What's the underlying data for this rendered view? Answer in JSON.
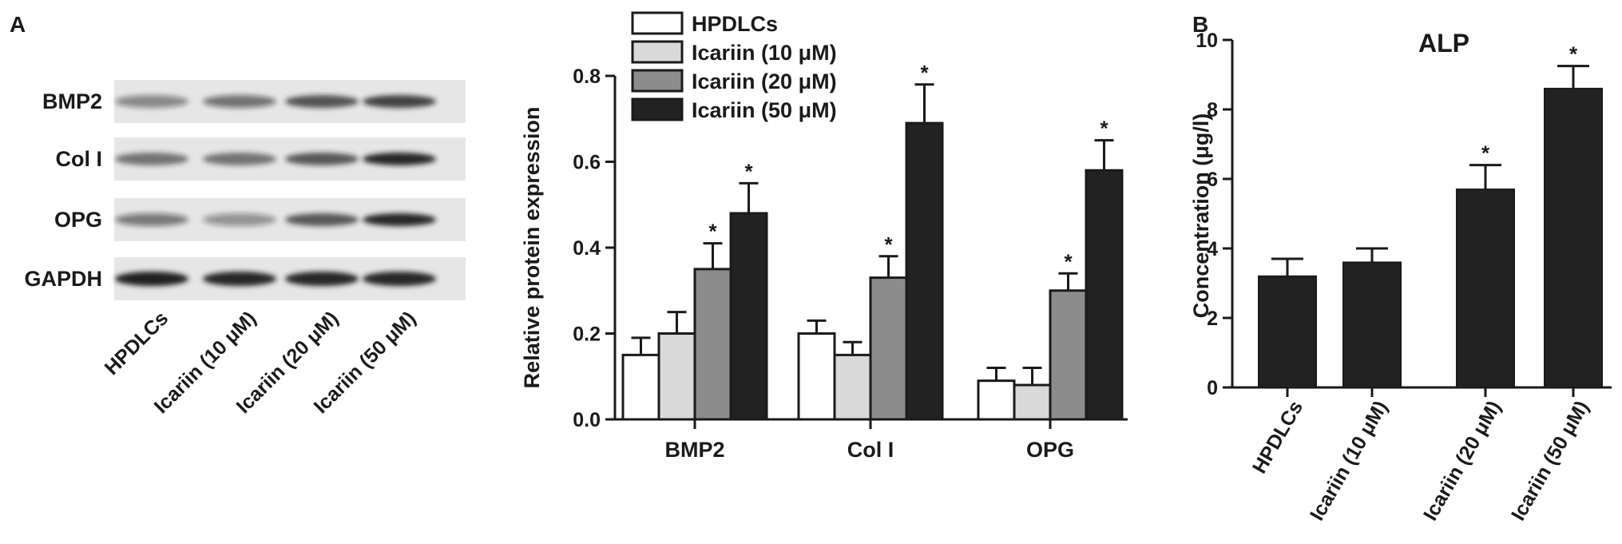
{
  "panels": {
    "a_label": "A",
    "b_label": "B"
  },
  "blot": {
    "rows": [
      "BMP2",
      "Col I",
      "OPG",
      "GAPDH"
    ],
    "lanes": [
      "HPDLCs",
      "Icariin (10 μM)",
      "Icariin (20 μM)",
      "Icariin (50 μM)"
    ]
  },
  "colors": {
    "series": [
      "#ffffff",
      "#d9d9d9",
      "#8c8c8c",
      "#222222"
    ],
    "alp_bar": "#222222",
    "axis": "#1a1a1a"
  },
  "chart_data": [
    {
      "type": "bar",
      "title": "",
      "xlabel": "",
      "ylabel": "Relative protein expression",
      "ylim": [
        0,
        0.8
      ],
      "yticks": [
        "0.0",
        "0.2",
        "0.4",
        "0.6",
        "0.8"
      ],
      "categories": [
        "BMP2",
        "Col I",
        "OPG"
      ],
      "legend_position": "top",
      "series": [
        {
          "name": "HPDLCs",
          "values": [
            0.15,
            0.2,
            0.09
          ],
          "errors": [
            0.04,
            0.03,
            0.03
          ],
          "significant": [
            false,
            false,
            false
          ]
        },
        {
          "name": "Icariin (10 μM)",
          "values": [
            0.2,
            0.15,
            0.08
          ],
          "errors": [
            0.05,
            0.03,
            0.04
          ],
          "significant": [
            false,
            false,
            false
          ]
        },
        {
          "name": "Icariin (20 μM)",
          "values": [
            0.35,
            0.33,
            0.3
          ],
          "errors": [
            0.06,
            0.05,
            0.04
          ],
          "significant": [
            true,
            true,
            true
          ]
        },
        {
          "name": "Icariin (50 μM)",
          "values": [
            0.48,
            0.69,
            0.58
          ],
          "errors": [
            0.07,
            0.09,
            0.07
          ],
          "significant": [
            true,
            true,
            true
          ]
        }
      ],
      "significance_marker": "*"
    },
    {
      "type": "bar",
      "title": "ALP",
      "xlabel": "",
      "ylabel": "Concentration (μg/l)",
      "ylim": [
        0,
        10
      ],
      "yticks": [
        "0",
        "2",
        "4",
        "6",
        "8",
        "10"
      ],
      "categories": [
        "HPDLCs",
        "Icariin (10 μM)",
        "Icariin (20 μM)",
        "Icariin (50 μM)"
      ],
      "values": [
        3.2,
        3.6,
        5.7,
        8.6
      ],
      "errors": [
        0.5,
        0.4,
        0.7,
        0.65
      ],
      "significant": [
        false,
        false,
        true,
        true
      ],
      "significance_marker": "*"
    }
  ]
}
